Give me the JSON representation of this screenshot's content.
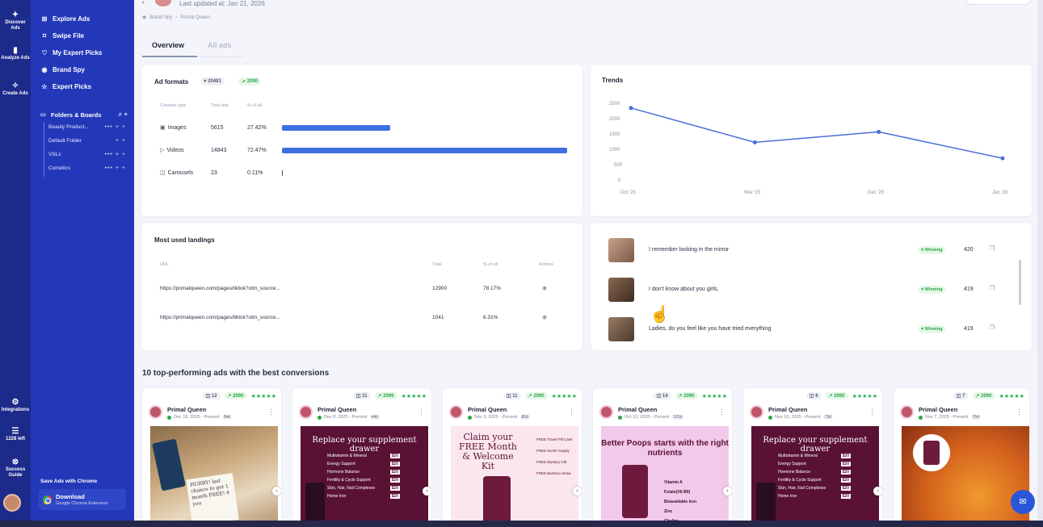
{
  "header": {
    "updated": "Last updated at: Jan 21, 2026",
    "breadcrumb": [
      "Brand Spy",
      "Primal Queen"
    ]
  },
  "rail": {
    "items": [
      {
        "label": "Discover Ads",
        "icon": "sparkle-icon"
      },
      {
        "label": "Analyze Ads",
        "icon": "bar-chart-icon"
      },
      {
        "label": "Create Ads",
        "icon": "bulb-icon"
      },
      {
        "label": "Integrations",
        "icon": "gear-icon"
      },
      {
        "label": "1228 left",
        "icon": "stack-icon"
      },
      {
        "label": "Success Guide",
        "icon": "lifebuoy-icon"
      }
    ]
  },
  "nav": {
    "items": [
      {
        "label": "Explore Ads",
        "icon": "grid-icon"
      },
      {
        "label": "Swipe File",
        "icon": "bookmark-icon"
      },
      {
        "label": "My Expert Picks",
        "icon": "heart-icon"
      },
      {
        "label": "Brand Spy",
        "icon": "spy-icon"
      },
      {
        "label": "Expert Picks",
        "icon": "star-icon"
      }
    ],
    "folders_title": "Folders & Boards",
    "folders": [
      "Beauty Product...",
      "Default Folder",
      "VSLs",
      "Cometics"
    ],
    "save_chrome": "Save Ads with Chrome",
    "download_title": "Download",
    "download_sub": "Google Chrome Extension"
  },
  "tabs": {
    "overview": "Overview",
    "all_ads": "All ads"
  },
  "ad_formats": {
    "title": "Ad formats",
    "total_pill": "20481",
    "winning_pill": "2090",
    "columns": [
      "Creative type",
      "Total ads",
      "% of all"
    ],
    "rows": [
      {
        "type": "Images",
        "icon": "image-icon",
        "total": "5615",
        "pct": "27.42%",
        "share": 27.42
      },
      {
        "type": "Videos",
        "icon": "video-icon",
        "total": "14843",
        "pct": "72.47%",
        "share": 72.47
      },
      {
        "type": "Carousels",
        "icon": "carousel-icon",
        "total": "23",
        "pct": "0.11%",
        "share": 0.11
      }
    ]
  },
  "trends": {
    "title": "Trends",
    "y_ticks": [
      "2500",
      "2000",
      "1500",
      "1000",
      "500",
      "0"
    ],
    "x_ticks": [
      "Oct '25",
      "Nov '25",
      "Dec '25",
      "Jan '26"
    ]
  },
  "chart_data": {
    "type": "line",
    "categories": [
      "Oct '25",
      "Nov '25",
      "Dec '25",
      "Jan '26"
    ],
    "values": [
      2400,
      1280,
      1620,
      760
    ],
    "title": "Trends",
    "ylim": [
      0,
      2500
    ],
    "grid": false
  },
  "landings": {
    "title": "Most used landings",
    "columns": [
      "URL",
      "Total",
      "% of all",
      "Actions"
    ],
    "rows": [
      {
        "url": "https://primalqueen.com/pages/tiktok?utm_source...",
        "total": "12900",
        "pct": "78.17%"
      },
      {
        "url": "https://primalqueen.com/pages/tiktok?utm_source...",
        "total": "1041",
        "pct": "6.31%"
      }
    ]
  },
  "winning_ads": [
    {
      "text": "I remember looking in the mirror",
      "badge": "Winning",
      "count": "420"
    },
    {
      "text": "I don't know about you girls,",
      "badge": "Winning",
      "count": "419"
    },
    {
      "text": "Ladies, do you feel like you have tried everything",
      "badge": "Winning",
      "count": "419"
    }
  ],
  "top_section_title": "10 top-performing ads with the best conversions",
  "ad_cards": [
    {
      "count": "12",
      "score": "2090",
      "stars": "★★★★★",
      "brand": "Primal Queen",
      "date": "Dec 18, 2025 - Present",
      "days": "34d",
      "creative": "photo1"
    },
    {
      "count": "11",
      "score": "2090",
      "stars": "★★★★★",
      "brand": "Primal Queen",
      "date": "Dec 8, 2025 - Present",
      "days": "44d",
      "creative": "maroon"
    },
    {
      "count": "11",
      "score": "2090",
      "stars": "★★★★★",
      "brand": "Primal Queen",
      "date": "Nov 3, 2025 - Present",
      "days": "80d",
      "creative": "pinkcard"
    },
    {
      "count": "14",
      "score": "2090",
      "stars": "★★★★★",
      "brand": "Primal Queen",
      "date": "Oct 13, 2025 - Present",
      "days": "101d",
      "creative": "lilac"
    },
    {
      "count": "6",
      "score": "2090",
      "stars": "★★★★★",
      "brand": "Primal Queen",
      "date": "Nov 10, 2025 - Present",
      "days": "73d",
      "creative": "maroon"
    },
    {
      "count": "7",
      "score": "2090",
      "stars": "★★★★★",
      "brand": "Primal Queen",
      "date": "Nov 7, 2025 - Present",
      "days": "76d",
      "creative": "orange"
    }
  ],
  "creatives": {
    "maroon_headline": "Replace your supplement drawer",
    "maroon_rows": [
      {
        "name": "Multivitamin & Mineral",
        "price": "$20"
      },
      {
        "name": "Energy Support",
        "price": "$20"
      },
      {
        "name": "Hormone Balance",
        "price": "$20"
      },
      {
        "name": "Fertility & Cycle Support",
        "price": "$20"
      },
      {
        "name": "Skin, Hair, Nail Complexes",
        "price": "$20"
      },
      {
        "name": "Home Iron",
        "price": "$20"
      }
    ],
    "pink_headline": "Claim your FREE Month & Welcome Kit",
    "pink_items": [
      "FREE Travel Pill Case",
      "FREE Month Supply",
      "FREE Mystery Gift",
      "FREE Bamboo Straw"
    ],
    "lilac_headline": "Better Poops starts with the right nutrients",
    "lilac_items": [
      "Vitamin A",
      "Folate(Vit B9)",
      "Bioavailable Iron",
      "Zinc",
      "Choline"
    ],
    "photo_note": "HURRY! last chance to get 1 month FREE! 4 you"
  }
}
